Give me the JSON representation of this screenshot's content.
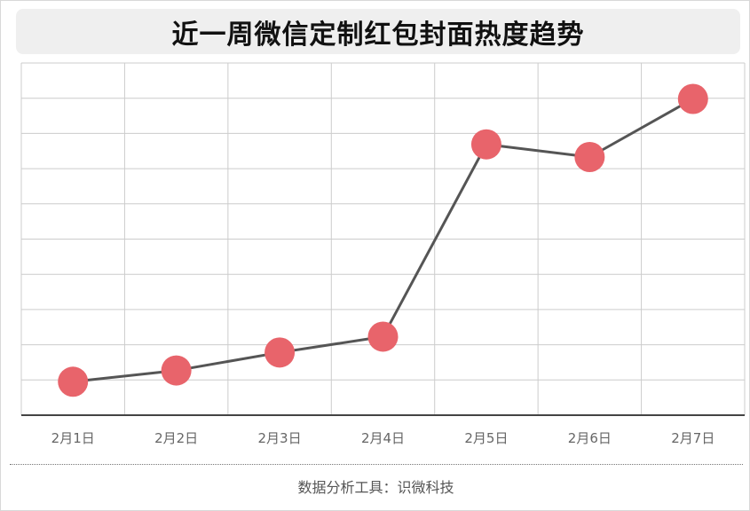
{
  "title": "近一周微信定制红包封面热度趋势",
  "footer": "数据分析工具：识微科技",
  "colors": {
    "line": "#555555",
    "marker": "#e8646b",
    "grid": "#cccccc",
    "axis": "#444444",
    "tick_text": "#666666"
  },
  "chart_data": {
    "type": "line",
    "categories": [
      "2月1日",
      "2月2日",
      "2月3日",
      "2月4日",
      "2月5日",
      "2月6日",
      "2月7日"
    ],
    "values": [
      0.95,
      1.27,
      1.78,
      2.23,
      7.69,
      7.33,
      8.98
    ],
    "ylim": [
      0,
      10
    ],
    "grid": true,
    "title": "近一周微信定制红包封面热度趋势",
    "xlabel": "",
    "ylabel": ""
  }
}
